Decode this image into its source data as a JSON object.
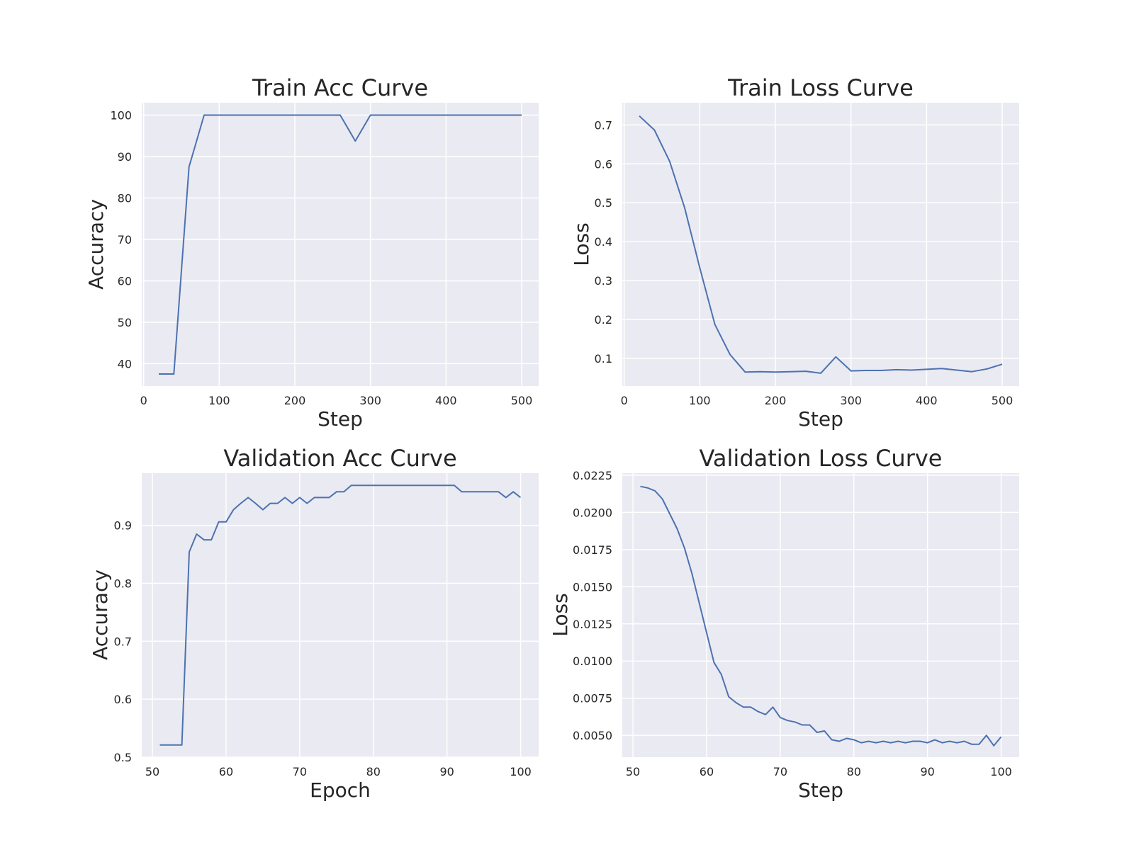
{
  "colors": {
    "background": "#ffffff",
    "plot_background": "#eaeaf2",
    "grid": "#ffffff",
    "line": "#4c72b0",
    "text": "#262626"
  },
  "chart_data": [
    {
      "type": "line",
      "title": "Train Acc Curve",
      "xlabel": "Step",
      "ylabel": "Accuracy",
      "xlim": [
        -2.5,
        522.5
      ],
      "ylim": [
        34.6,
        103.0
      ],
      "xticks": [
        0,
        100,
        200,
        300,
        400,
        500
      ],
      "yticks": [
        40,
        50,
        60,
        70,
        80,
        90,
        100
      ],
      "ytick_labels": [
        "40",
        "50",
        "60",
        "70",
        "80",
        "90",
        "100"
      ],
      "grid": true,
      "series": [
        {
          "x": [
            20,
            40,
            60,
            80,
            100,
            120,
            140,
            160,
            180,
            200,
            220,
            240,
            260,
            280,
            300,
            320,
            340,
            360,
            380,
            400,
            420,
            440,
            460,
            480,
            500
          ],
          "y": [
            37.5,
            37.5,
            87.5,
            100,
            100,
            100,
            100,
            100,
            100,
            100,
            100,
            100,
            100,
            93.75,
            100,
            100,
            100,
            100,
            100,
            100,
            100,
            100,
            100,
            100,
            100
          ]
        }
      ]
    },
    {
      "type": "line",
      "title": "Train Loss Curve",
      "xlabel": "Step",
      "ylabel": "Loss",
      "xlim": [
        -2.5,
        522.5
      ],
      "ylim": [
        0.029,
        0.757
      ],
      "xticks": [
        0,
        100,
        200,
        300,
        400,
        500
      ],
      "yticks": [
        0.1,
        0.2,
        0.3,
        0.4,
        0.5,
        0.6,
        0.7
      ],
      "ytick_labels": [
        "0.1",
        "0.2",
        "0.3",
        "0.4",
        "0.5",
        "0.6",
        "0.7"
      ],
      "grid": true,
      "series": [
        {
          "x": [
            20,
            40,
            60,
            80,
            100,
            120,
            140,
            160,
            180,
            200,
            220,
            240,
            260,
            280,
            300,
            320,
            340,
            360,
            380,
            400,
            420,
            440,
            460,
            480,
            500
          ],
          "y": [
            0.723,
            0.687,
            0.607,
            0.487,
            0.333,
            0.187,
            0.11,
            0.065,
            0.066,
            0.065,
            0.066,
            0.067,
            0.062,
            0.104,
            0.068,
            0.069,
            0.069,
            0.071,
            0.07,
            0.072,
            0.074,
            0.07,
            0.066,
            0.073,
            0.085
          ]
        }
      ]
    },
    {
      "type": "line",
      "title": "Validation Acc Curve",
      "xlabel": "Epoch",
      "ylabel": "Accuracy",
      "xlim": [
        48.55,
        102.45
      ],
      "ylim": [
        0.4998,
        0.9901
      ],
      "xticks": [
        50,
        60,
        70,
        80,
        90,
        100
      ],
      "yticks": [
        0.5,
        0.6,
        0.7,
        0.8,
        0.9
      ],
      "ytick_labels": [
        "0.5",
        "0.6",
        "0.7",
        "0.8",
        "0.9"
      ],
      "grid": true,
      "series": [
        {
          "x": [
            51,
            52,
            53,
            54,
            55,
            56,
            57,
            58,
            59,
            60,
            61,
            62,
            63,
            64,
            65,
            66,
            67,
            68,
            69,
            70,
            71,
            72,
            73,
            74,
            75,
            76,
            77,
            78,
            79,
            80,
            81,
            82,
            83,
            84,
            85,
            86,
            87,
            88,
            89,
            90,
            91,
            92,
            93,
            94,
            95,
            96,
            97,
            98,
            99,
            100
          ],
          "y": [
            0.521,
            0.521,
            0.521,
            0.521,
            0.854,
            0.885,
            0.875,
            0.875,
            0.906,
            0.906,
            0.927,
            0.938,
            0.948,
            0.938,
            0.927,
            0.938,
            0.938,
            0.948,
            0.938,
            0.948,
            0.938,
            0.948,
            0.948,
            0.948,
            0.958,
            0.958,
            0.969,
            0.969,
            0.969,
            0.969,
            0.969,
            0.969,
            0.969,
            0.969,
            0.969,
            0.969,
            0.969,
            0.969,
            0.969,
            0.969,
            0.969,
            0.958,
            0.958,
            0.958,
            0.958,
            0.958,
            0.958,
            0.948,
            0.958,
            0.948
          ]
        }
      ]
    },
    {
      "type": "line",
      "title": "Validation Loss Curve",
      "xlabel": "Step",
      "ylabel": "Loss",
      "xlim": [
        48.55,
        102.45
      ],
      "ylim": [
        0.00353,
        0.02264
      ],
      "xticks": [
        50,
        60,
        70,
        80,
        90,
        100
      ],
      "yticks": [
        0.005,
        0.0075,
        0.01,
        0.0125,
        0.015,
        0.0175,
        0.02,
        0.0225
      ],
      "ytick_labels": [
        "0.0050",
        "0.0075",
        "0.0100",
        "0.0125",
        "0.0150",
        "0.0175",
        "0.0200",
        "0.0225"
      ],
      "grid": true,
      "series": [
        {
          "x": [
            51,
            52,
            53,
            54,
            55,
            56,
            57,
            58,
            59,
            60,
            61,
            62,
            63,
            64,
            65,
            66,
            67,
            68,
            69,
            70,
            71,
            72,
            73,
            74,
            75,
            76,
            77,
            78,
            79,
            80,
            81,
            82,
            83,
            84,
            85,
            86,
            87,
            88,
            89,
            90,
            91,
            92,
            93,
            94,
            95,
            96,
            97,
            98,
            99,
            100
          ],
          "y": [
            0.02175,
            0.02165,
            0.02145,
            0.0209,
            0.0199,
            0.0189,
            0.0176,
            0.0159,
            0.0139,
            0.0119,
            0.0099,
            0.0091,
            0.0076,
            0.0072,
            0.0069,
            0.0069,
            0.0066,
            0.0064,
            0.0069,
            0.0062,
            0.006,
            0.0059,
            0.0057,
            0.0057,
            0.0052,
            0.0053,
            0.0047,
            0.0046,
            0.0048,
            0.0047,
            0.0045,
            0.0046,
            0.0045,
            0.0046,
            0.0045,
            0.0046,
            0.0045,
            0.0046,
            0.0046,
            0.0045,
            0.0047,
            0.0045,
            0.0046,
            0.0045,
            0.0046,
            0.0044,
            0.0044,
            0.005,
            0.0043,
            0.0049
          ]
        }
      ]
    }
  ]
}
